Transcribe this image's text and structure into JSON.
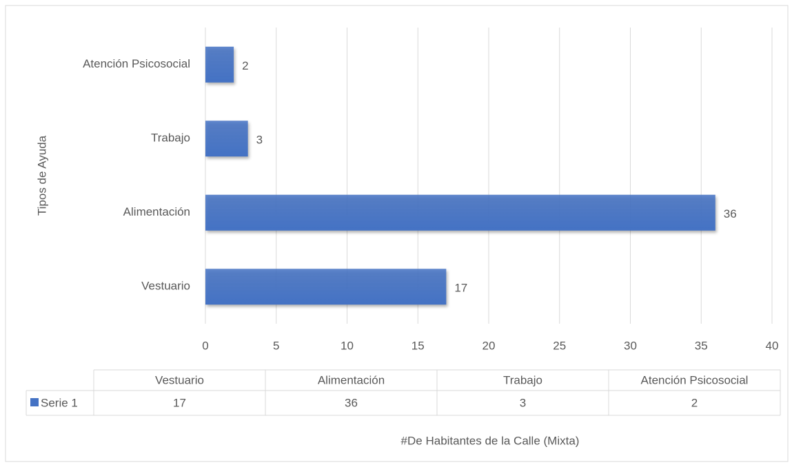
{
  "chart_data": {
    "type": "bar",
    "orientation": "horizontal",
    "categories": [
      "Vestuario",
      "Alimentación",
      "Trabajo",
      "Atención Psicosocial"
    ],
    "series": [
      {
        "name": "Serie 1",
        "color": "#4472c4",
        "values": [
          17,
          36,
          3,
          2
        ]
      }
    ],
    "xlim": [
      0,
      40
    ],
    "xticks": [
      0,
      5,
      10,
      15,
      20,
      25,
      30,
      35,
      40
    ],
    "grid": true,
    "xlabel": "#De Habitantes de la Calle (Mixta)",
    "ylabel": "Tipos de Ayuda"
  }
}
